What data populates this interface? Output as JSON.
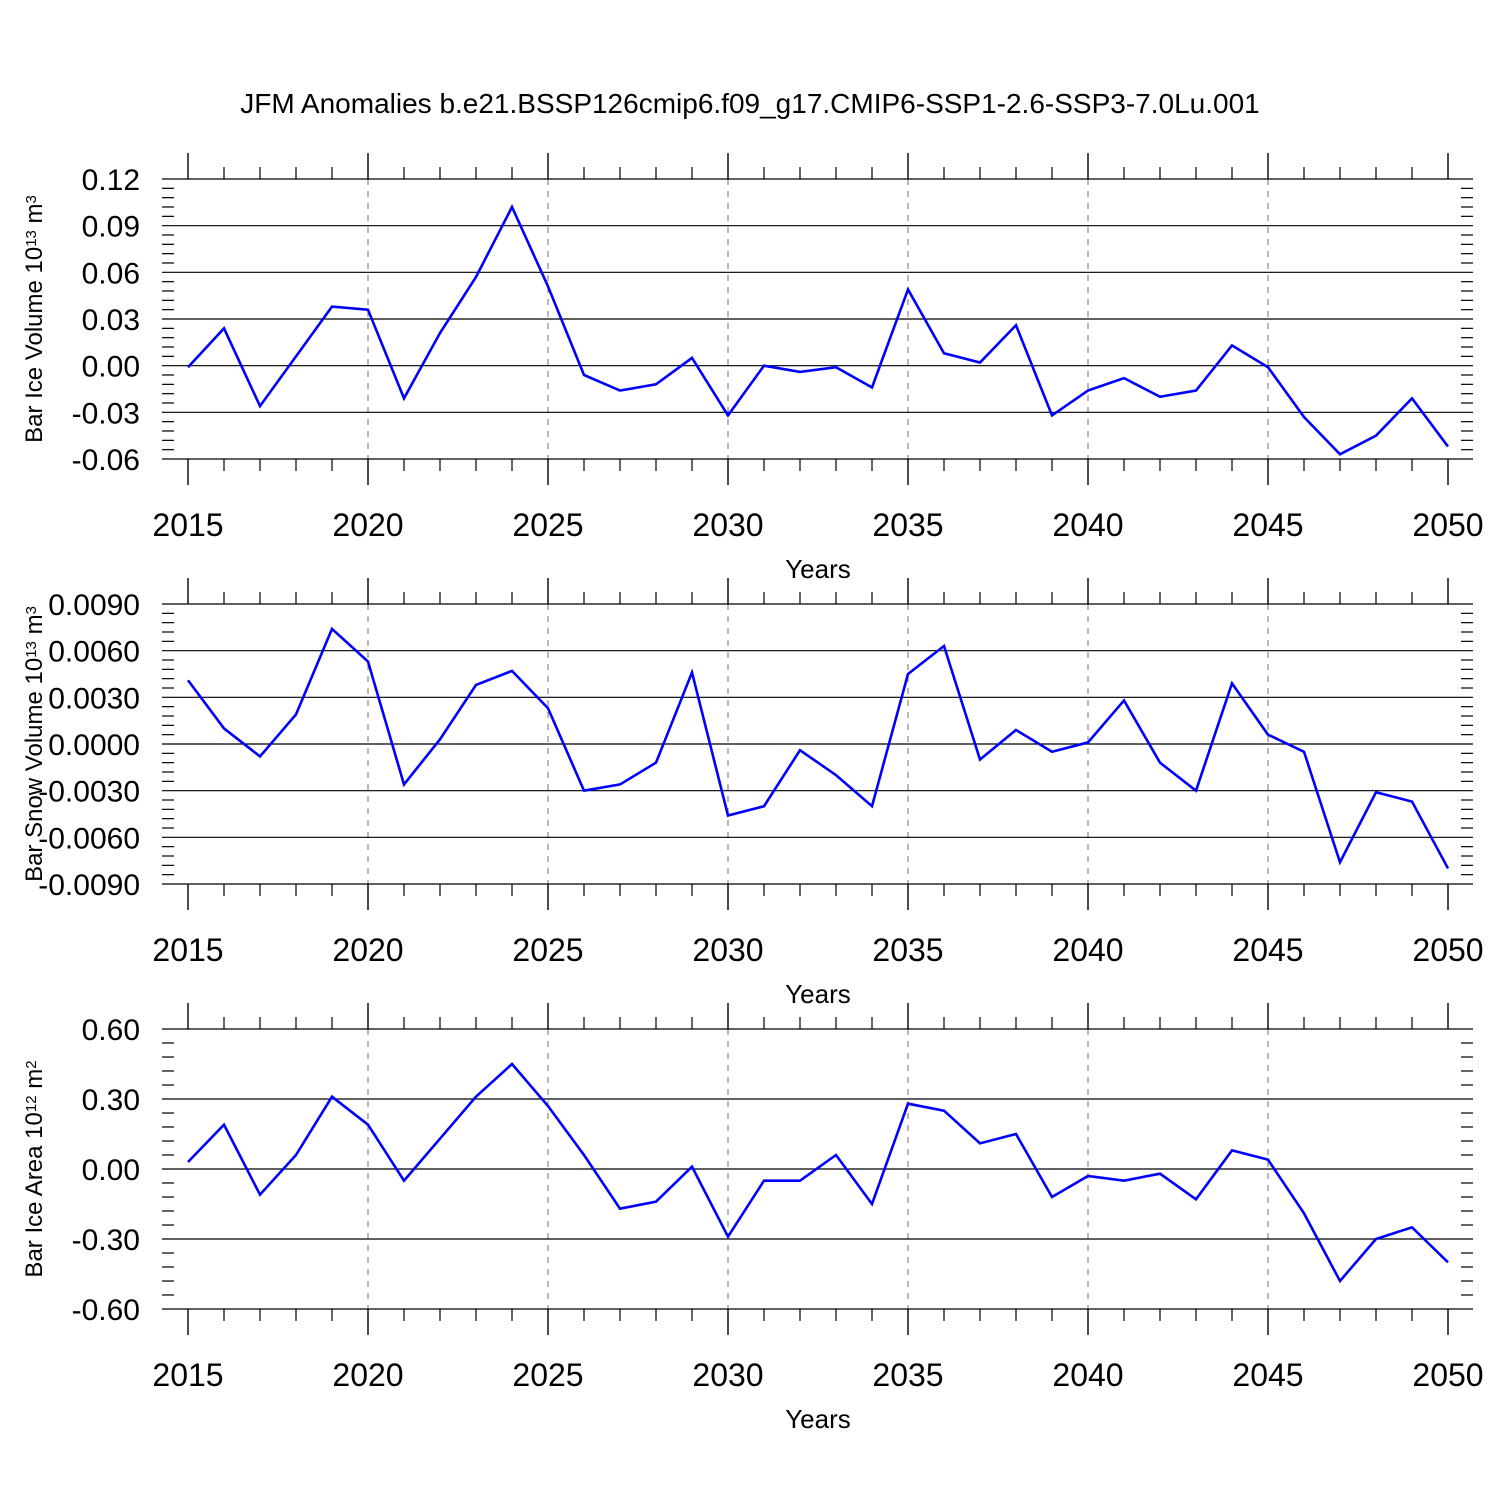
{
  "title": "JFM Anomalies b.e21.BSSP126cmip6.f09_g17.CMIP6-SSP1-2.6-SSP3-7.0Lu.001",
  "line_color": "#0000ff",
  "chart_data": [
    {
      "type": "line",
      "ylabel_main": "Bar Ice Volume 10",
      "ylabel_exp": "13",
      "ylabel_unit": " m",
      "ylabel_unit_exp": "3",
      "xlabel": "Years",
      "ylim": [
        -0.06,
        0.12
      ],
      "yticks": [
        -0.06,
        -0.03,
        0.0,
        0.03,
        0.06,
        0.09,
        0.12
      ],
      "ytick_labels": [
        "-0.06",
        "-0.03",
        "0.00",
        "0.03",
        "0.06",
        "0.09",
        "0.12"
      ],
      "xlim": [
        2015,
        2050
      ],
      "xticks": [
        2015,
        2020,
        2025,
        2030,
        2035,
        2040,
        2045,
        2050
      ],
      "xtick_labels": [
        "2015",
        "2020",
        "2025",
        "2030",
        "2035",
        "2040",
        "2045",
        "2050"
      ],
      "x": [
        2015,
        2016,
        2017,
        2018,
        2019,
        2020,
        2021,
        2022,
        2023,
        2024,
        2025,
        2026,
        2027,
        2028,
        2029,
        2030,
        2031,
        2032,
        2033,
        2034,
        2035,
        2036,
        2037,
        2038,
        2039,
        2040,
        2041,
        2042,
        2043,
        2044,
        2045,
        2046,
        2047,
        2048,
        2049,
        2050
      ],
      "values": [
        -0.001,
        0.024,
        -0.026,
        0.006,
        0.038,
        0.036,
        -0.021,
        0.021,
        0.057,
        0.102,
        0.051,
        -0.006,
        -0.016,
        -0.012,
        0.005,
        -0.032,
        0.0,
        -0.004,
        -0.001,
        -0.014,
        0.049,
        0.008,
        0.002,
        0.026,
        -0.032,
        -0.016,
        -0.008,
        -0.02,
        -0.016,
        0.013,
        -0.001,
        -0.033,
        -0.057,
        -0.045,
        -0.021,
        -0.052
      ]
    },
    {
      "type": "line",
      "ylabel_main": "Bar Snow Volume 10",
      "ylabel_exp": "13",
      "ylabel_unit": " m",
      "ylabel_unit_exp": "3",
      "xlabel": "Years",
      "ylim": [
        -0.009,
        0.009
      ],
      "yticks": [
        -0.009,
        -0.006,
        -0.003,
        0.0,
        0.003,
        0.006,
        0.009
      ],
      "ytick_labels": [
        "-0.0090",
        "-0.0060",
        "-0.0030",
        "0.0000",
        "0.0030",
        "0.0060",
        "0.0090"
      ],
      "xlim": [
        2015,
        2050
      ],
      "xticks": [
        2015,
        2020,
        2025,
        2030,
        2035,
        2040,
        2045,
        2050
      ],
      "xtick_labels": [
        "2015",
        "2020",
        "2025",
        "2030",
        "2035",
        "2040",
        "2045",
        "2050"
      ],
      "x": [
        2015,
        2016,
        2017,
        2018,
        2019,
        2020,
        2021,
        2022,
        2023,
        2024,
        2025,
        2026,
        2027,
        2028,
        2029,
        2030,
        2031,
        2032,
        2033,
        2034,
        2035,
        2036,
        2037,
        2038,
        2039,
        2040,
        2041,
        2042,
        2043,
        2044,
        2045,
        2046,
        2047,
        2048,
        2049,
        2050
      ],
      "values": [
        0.0041,
        0.001,
        -0.0008,
        0.0019,
        0.0074,
        0.0053,
        -0.0026,
        0.0003,
        0.0038,
        0.0047,
        0.0023,
        -0.003,
        -0.0026,
        -0.0012,
        0.0046,
        -0.0046,
        -0.004,
        -0.0004,
        -0.002,
        -0.004,
        0.0045,
        0.0063,
        -0.001,
        0.0009,
        -0.0005,
        0.0001,
        0.0028,
        -0.0012,
        -0.003,
        0.0039,
        0.0006,
        -0.0005,
        -0.0076,
        -0.0031,
        -0.0037,
        -0.008
      ]
    },
    {
      "type": "line",
      "ylabel_main": "Bar Ice Area 10",
      "ylabel_exp": "12",
      "ylabel_unit": " m",
      "ylabel_unit_exp": "2",
      "xlabel": "Years",
      "ylim": [
        -0.6,
        0.6
      ],
      "yticks": [
        -0.6,
        -0.3,
        0.0,
        0.3,
        0.6
      ],
      "ytick_labels": [
        "-0.60",
        "-0.30",
        "0.00",
        "0.30",
        "0.60"
      ],
      "xlim": [
        2015,
        2050
      ],
      "xticks": [
        2015,
        2020,
        2025,
        2030,
        2035,
        2040,
        2045,
        2050
      ],
      "xtick_labels": [
        "2015",
        "2020",
        "2025",
        "2030",
        "2035",
        "2040",
        "2045",
        "2050"
      ],
      "x": [
        2015,
        2016,
        2017,
        2018,
        2019,
        2020,
        2021,
        2022,
        2023,
        2024,
        2025,
        2026,
        2027,
        2028,
        2029,
        2030,
        2031,
        2032,
        2033,
        2034,
        2035,
        2036,
        2037,
        2038,
        2039,
        2040,
        2041,
        2042,
        2043,
        2044,
        2045,
        2046,
        2047,
        2048,
        2049,
        2050
      ],
      "values": [
        0.03,
        0.19,
        -0.11,
        0.06,
        0.31,
        0.19,
        -0.05,
        0.13,
        0.31,
        0.45,
        0.27,
        0.06,
        -0.17,
        -0.14,
        0.01,
        -0.29,
        -0.05,
        -0.05,
        0.06,
        -0.15,
        0.28,
        0.25,
        0.11,
        0.15,
        -0.12,
        -0.03,
        -0.05,
        -0.02,
        -0.13,
        0.08,
        0.04,
        -0.19,
        -0.48,
        -0.3,
        -0.25,
        -0.4
      ]
    }
  ]
}
